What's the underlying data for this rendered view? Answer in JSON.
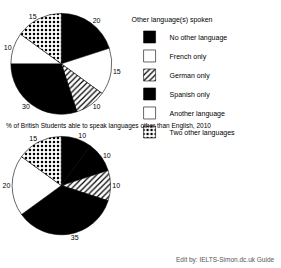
{
  "chart_data": [
    {
      "type": "pie",
      "categories": [
        "No other language",
        "French only",
        "German only",
        "Spanish only",
        "Another language",
        "Two other languages"
      ],
      "values": [
        20,
        15,
        10,
        30,
        10,
        15
      ],
      "colors": [
        "#000000",
        "#ffffff",
        "#ffffff",
        "#000000",
        "#ffffff",
        "#ffffff"
      ],
      "data_labels": true,
      "legend_title": "Other language(s) spoken"
    },
    {
      "type": "pie",
      "title": "% of British Students able to speak languages other than English, 2010",
      "categories": [
        "No other language",
        "French only",
        "German only",
        "Spanish only",
        "Another language",
        "Two other languages"
      ],
      "values": [
        10,
        10,
        10,
        35,
        20,
        15
      ],
      "colors": [
        "#000000",
        "#000000",
        "#ffffff",
        "#000000",
        "#ffffff",
        "#ffffff"
      ],
      "data_labels": true,
      "legend_title": "Other language(s) spoken",
      "annotations": [
        {
          "text": "Edit by: IELTS-Simon.dc.uk Guide"
        }
      ]
    }
  ]
}
